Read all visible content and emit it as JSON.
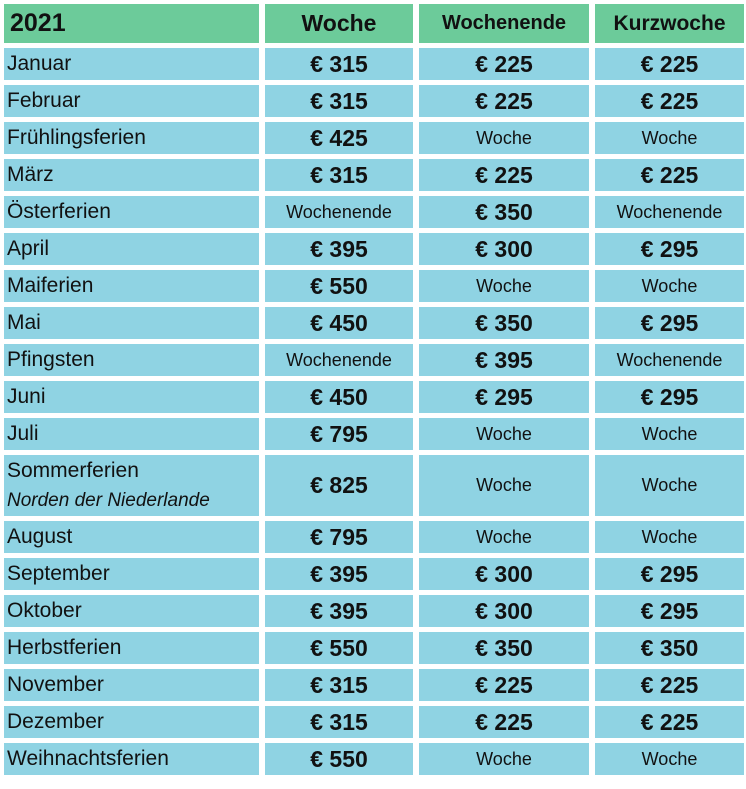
{
  "header": {
    "year": "2021",
    "col_week": "Woche",
    "col_weekend": "Wochenende",
    "col_short": "Kurzwoche"
  },
  "rows": [
    {
      "label": "Januar",
      "week": "€ 315",
      "weekend": "€ 225",
      "short": "€ 225"
    },
    {
      "label": "Februar",
      "week": "€ 315",
      "weekend": "€ 225",
      "short": "€ 225"
    },
    {
      "label": "Frühlingsferien",
      "week": "€ 425",
      "weekend": "Woche",
      "short": "Woche"
    },
    {
      "label": "März",
      "week": "€ 315",
      "weekend": "€ 225",
      "short": "€ 225"
    },
    {
      "label": "Österferien",
      "week": "Wochenende",
      "weekend": "€ 350",
      "short": "Wochenende"
    },
    {
      "label": "April",
      "week": "€ 395",
      "weekend": "€ 300",
      "short": "€ 295"
    },
    {
      "label": "Maiferien",
      "week": "€ 550",
      "weekend": "Woche",
      "short": "Woche"
    },
    {
      "label": "Mai",
      "week": "€ 450",
      "weekend": "€ 350",
      "short": "€ 295"
    },
    {
      "label": "Pfingsten",
      "week": "Wochenende",
      "weekend": "€ 395",
      "short": "Wochenende"
    },
    {
      "label": "Juni",
      "week": "€ 450",
      "weekend": "€ 295",
      "short": "€ 295"
    },
    {
      "label": "Juli",
      "week": "€ 795",
      "weekend": "Woche",
      "short": "Woche"
    },
    {
      "label": "Sommerferien",
      "sublabel": "Norden der Niederlande",
      "week": "€ 825",
      "weekend": "Woche",
      "short": "Woche"
    },
    {
      "label": "August",
      "week": "€ 795",
      "weekend": "Woche",
      "short": "Woche"
    },
    {
      "label": "September",
      "week": "€ 395",
      "weekend": "€ 300",
      "short": "€ 295"
    },
    {
      "label": "Oktober",
      "week": "€ 395",
      "weekend": "€ 300",
      "short": "€ 295"
    },
    {
      "label": "Herbstferien",
      "week": "€ 550",
      "weekend": "€ 350",
      "short": "€ 350"
    },
    {
      "label": "November",
      "week": "€ 315",
      "weekend": "€ 225",
      "short": "€ 225"
    },
    {
      "label": "Dezember",
      "week": "€ 315",
      "weekend": "€ 225",
      "short": "€ 225"
    },
    {
      "label": "Weihnachtsferien",
      "week": "€ 550",
      "weekend": "Woche",
      "short": "Woche"
    }
  ],
  "colors": {
    "header_bg": "#6ccb9a",
    "cell_bg": "#8fd3e3"
  }
}
